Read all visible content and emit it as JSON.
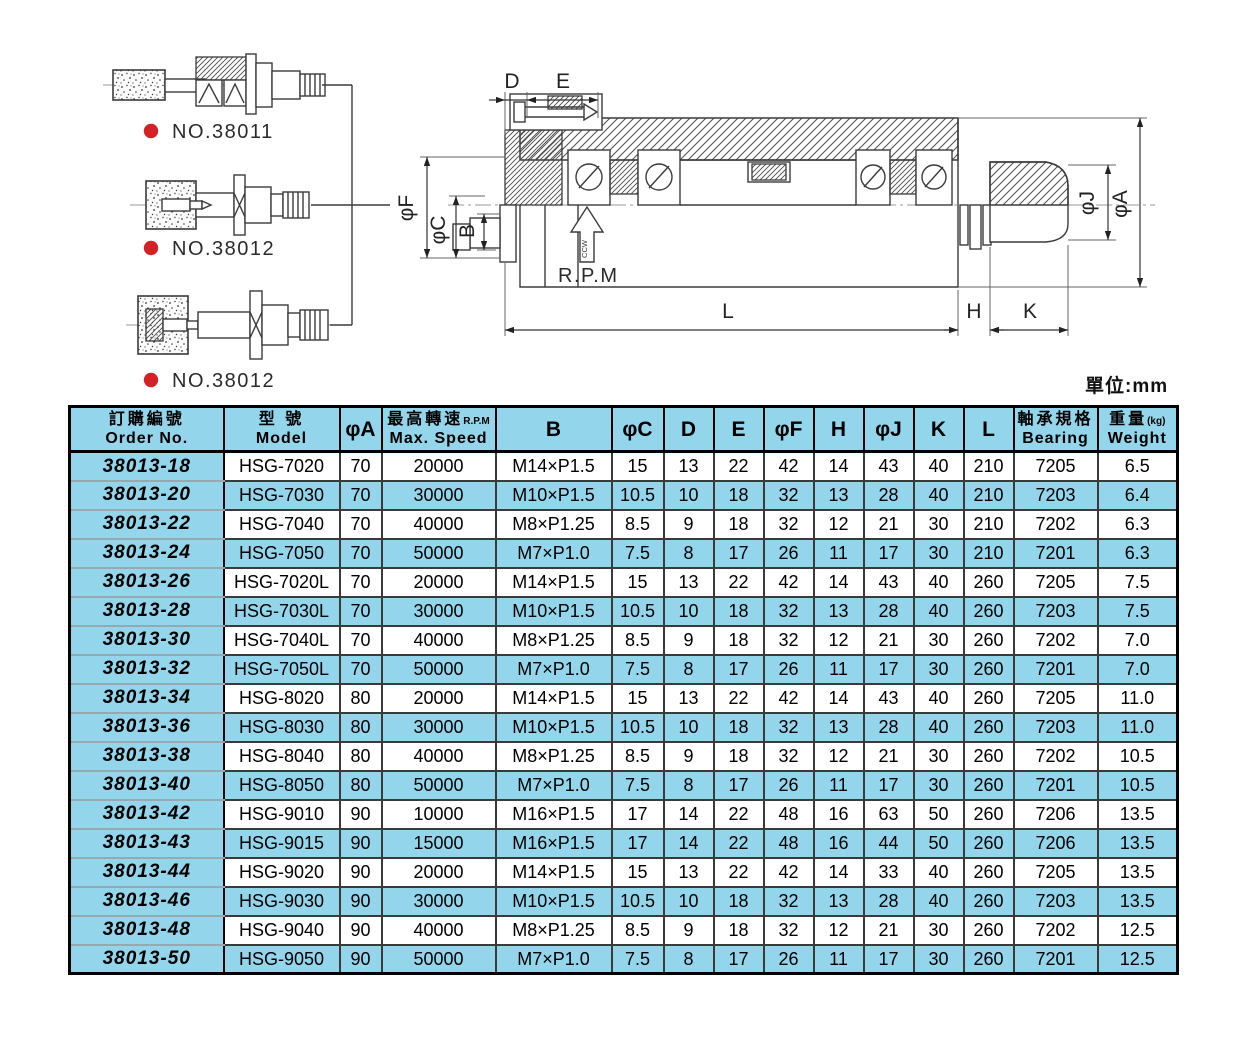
{
  "page": {
    "unit_note": "單位:mm"
  },
  "figures": {
    "dot_color": "#d42127",
    "items": [
      {
        "label": "NO.38011"
      },
      {
        "label": "NO.38012"
      },
      {
        "label": "NO.38012"
      }
    ],
    "main": {
      "dims": {
        "d": "D",
        "e": "E",
        "phiF": "φF",
        "phiC": "φC",
        "b": "B",
        "rpm": "R.P.M",
        "ccw": "CCW",
        "l": "L",
        "h": "H",
        "k": "K",
        "phiJ": "φJ",
        "phiA": "φA"
      }
    }
  },
  "table": {
    "accent_color": "#93d5ea",
    "columns": [
      {
        "cn": "訂購編號",
        "en": "Order No."
      },
      {
        "cn": "型  號",
        "en": "Model"
      },
      {
        "label": "φA"
      },
      {
        "cn": "最高轉速",
        "cn_small": "R.P.M",
        "en": "Max. Speed"
      },
      {
        "label": "B"
      },
      {
        "label": "φC"
      },
      {
        "label": "D"
      },
      {
        "label": "E"
      },
      {
        "label": "φF"
      },
      {
        "label": "H"
      },
      {
        "label": "φJ"
      },
      {
        "label": "K"
      },
      {
        "label": "L"
      },
      {
        "cn": "軸承規格",
        "en": "Bearing"
      },
      {
        "cn": "重量",
        "cn_small": "(kg)",
        "en": "Weight"
      }
    ],
    "rows": [
      [
        "38013-18",
        "HSG-7020",
        "70",
        "20000",
        "M14×P1.5",
        "15",
        "13",
        "22",
        "42",
        "14",
        "43",
        "40",
        "210",
        "7205",
        "6.5"
      ],
      [
        "38013-20",
        "HSG-7030",
        "70",
        "30000",
        "M10×P1.5",
        "10.5",
        "10",
        "18",
        "32",
        "13",
        "28",
        "40",
        "210",
        "7203",
        "6.4"
      ],
      [
        "38013-22",
        "HSG-7040",
        "70",
        "40000",
        "M8×P1.25",
        "8.5",
        "9",
        "18",
        "32",
        "12",
        "21",
        "30",
        "210",
        "7202",
        "6.3"
      ],
      [
        "38013-24",
        "HSG-7050",
        "70",
        "50000",
        "M7×P1.0",
        "7.5",
        "8",
        "17",
        "26",
        "11",
        "17",
        "30",
        "210",
        "7201",
        "6.3"
      ],
      [
        "38013-26",
        "HSG-7020L",
        "70",
        "20000",
        "M14×P1.5",
        "15",
        "13",
        "22",
        "42",
        "14",
        "43",
        "40",
        "260",
        "7205",
        "7.5"
      ],
      [
        "38013-28",
        "HSG-7030L",
        "70",
        "30000",
        "M10×P1.5",
        "10.5",
        "10",
        "18",
        "32",
        "13",
        "28",
        "40",
        "260",
        "7203",
        "7.5"
      ],
      [
        "38013-30",
        "HSG-7040L",
        "70",
        "40000",
        "M8×P1.25",
        "8.5",
        "9",
        "18",
        "32",
        "12",
        "21",
        "30",
        "260",
        "7202",
        "7.0"
      ],
      [
        "38013-32",
        "HSG-7050L",
        "70",
        "50000",
        "M7×P1.0",
        "7.5",
        "8",
        "17",
        "26",
        "11",
        "17",
        "30",
        "260",
        "7201",
        "7.0"
      ],
      [
        "38013-34",
        "HSG-8020",
        "80",
        "20000",
        "M14×P1.5",
        "15",
        "13",
        "22",
        "42",
        "14",
        "43",
        "40",
        "260",
        "7205",
        "11.0"
      ],
      [
        "38013-36",
        "HSG-8030",
        "80",
        "30000",
        "M10×P1.5",
        "10.5",
        "10",
        "18",
        "32",
        "13",
        "28",
        "40",
        "260",
        "7203",
        "11.0"
      ],
      [
        "38013-38",
        "HSG-8040",
        "80",
        "40000",
        "M8×P1.25",
        "8.5",
        "9",
        "18",
        "32",
        "12",
        "21",
        "30",
        "260",
        "7202",
        "10.5"
      ],
      [
        "38013-40",
        "HSG-8050",
        "80",
        "50000",
        "M7×P1.0",
        "7.5",
        "8",
        "17",
        "26",
        "11",
        "17",
        "30",
        "260",
        "7201",
        "10.5"
      ],
      [
        "38013-42",
        "HSG-9010",
        "90",
        "10000",
        "M16×P1.5",
        "17",
        "14",
        "22",
        "48",
        "16",
        "63",
        "50",
        "260",
        "7206",
        "13.5"
      ],
      [
        "38013-43",
        "HSG-9015",
        "90",
        "15000",
        "M16×P1.5",
        "17",
        "14",
        "22",
        "48",
        "16",
        "44",
        "50",
        "260",
        "7206",
        "13.5"
      ],
      [
        "38013-44",
        "HSG-9020",
        "90",
        "20000",
        "M14×P1.5",
        "15",
        "13",
        "22",
        "42",
        "14",
        "33",
        "40",
        "260",
        "7205",
        "13.5"
      ],
      [
        "38013-46",
        "HSG-9030",
        "90",
        "30000",
        "M10×P1.5",
        "10.5",
        "10",
        "18",
        "32",
        "13",
        "28",
        "40",
        "260",
        "7203",
        "13.5"
      ],
      [
        "38013-48",
        "HSG-9040",
        "90",
        "40000",
        "M8×P1.25",
        "8.5",
        "9",
        "18",
        "32",
        "12",
        "21",
        "30",
        "260",
        "7202",
        "12.5"
      ],
      [
        "38013-50",
        "HSG-9050",
        "90",
        "50000",
        "M7×P1.0",
        "7.5",
        "8",
        "17",
        "26",
        "11",
        "17",
        "30",
        "260",
        "7201",
        "12.5"
      ]
    ]
  }
}
